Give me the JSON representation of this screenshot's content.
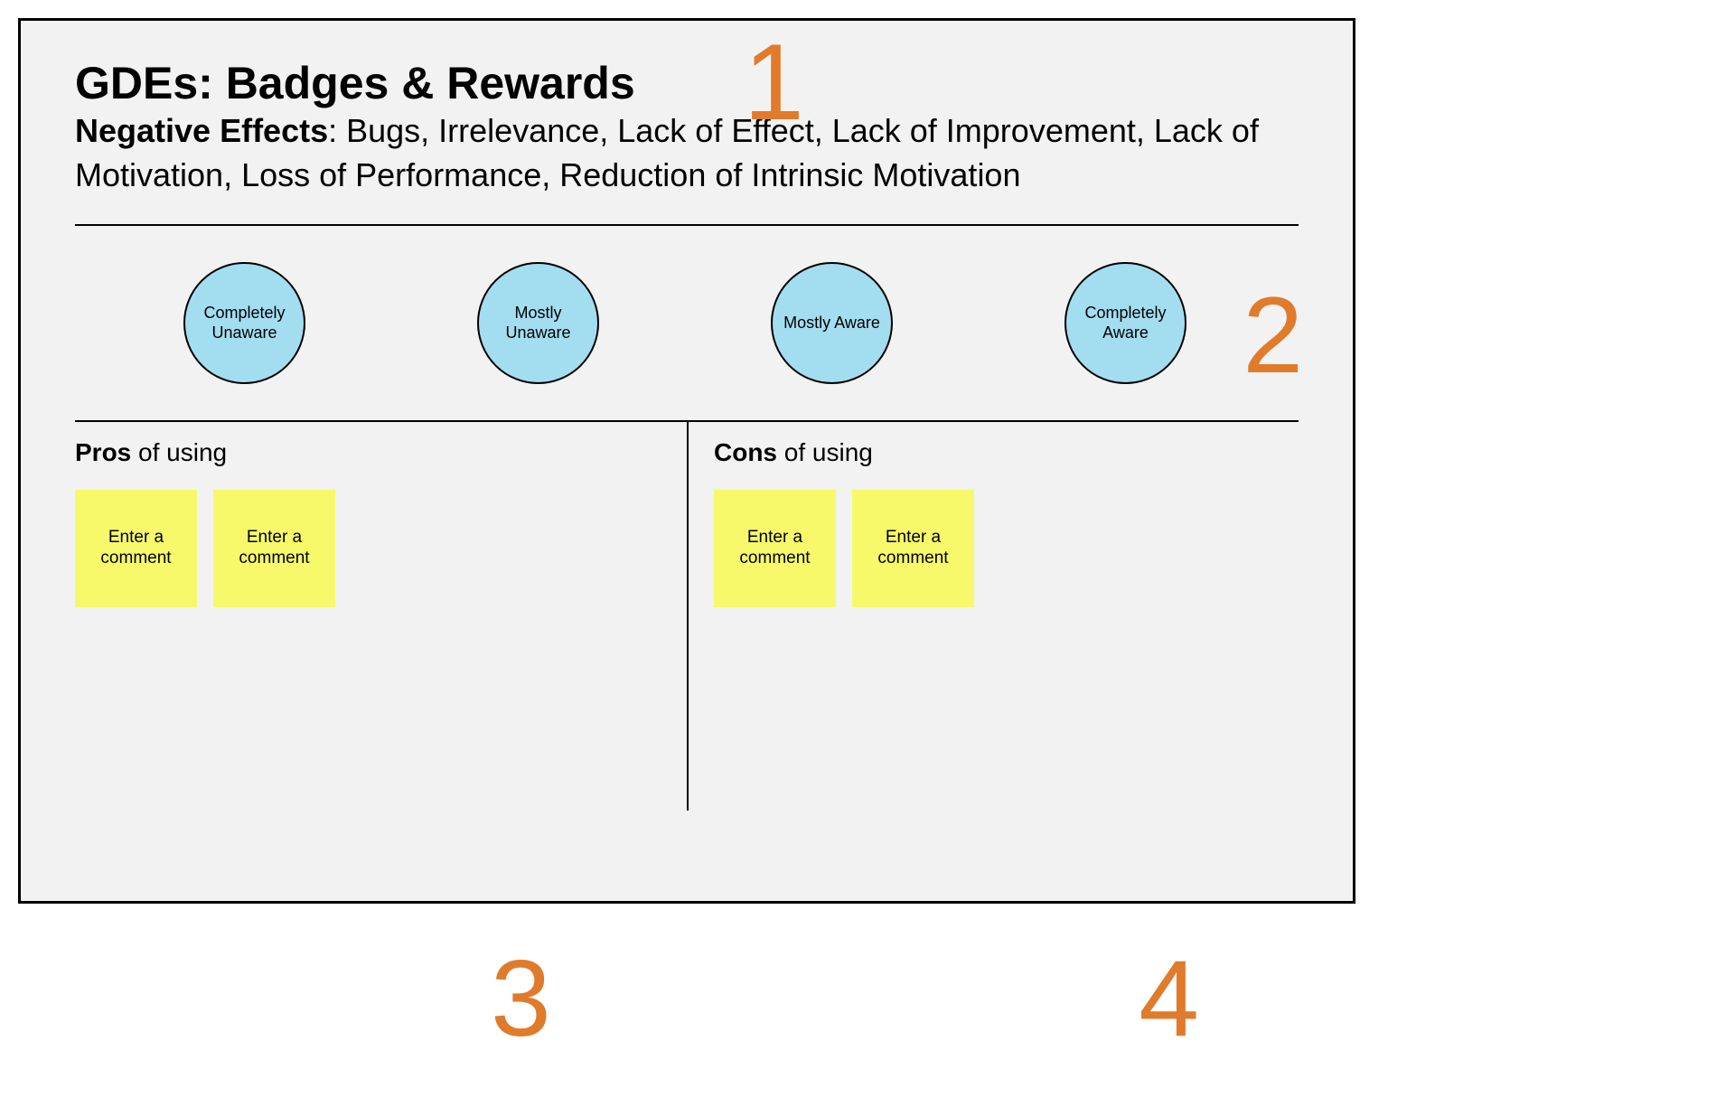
{
  "frame": {
    "background_color": "#f2f2f2",
    "border_color": "#000000",
    "border_width": 3
  },
  "title": "GDEs: Badges & Rewards",
  "title_fontsize": 50,
  "subtitle": {
    "lead": "Negative Effects",
    "rest": ": Bugs, Irrelevance, Lack of Effect, Lack of Improvement, Lack of Motivation, Loss of Performance, Reduction of Intrinsic Motivation",
    "fontsize": 36
  },
  "annotations": {
    "color": "#e07b2c",
    "fontsize": 120,
    "num1": "1",
    "num2": "2",
    "num3": "3",
    "num4": "4"
  },
  "awareness": {
    "type": "likert-circles",
    "circle_color": "#a3ddf0",
    "circle_border": "#000000",
    "circle_diameter": 135,
    "options": [
      "Completely Unaware",
      "Mostly Unaware",
      "Mostly Aware",
      "Completely Aware"
    ]
  },
  "columns": {
    "left": {
      "title_bold": "Pros",
      "title_rest": " of using",
      "sticky_placeholder": "Enter a comment"
    },
    "right": {
      "title_bold": "Cons",
      "title_rest": " of using",
      "sticky_placeholder": "Enter a comment"
    },
    "sticky": {
      "background_color": "#f7f96a",
      "width": 135,
      "height": 130,
      "fontsize": 19
    }
  },
  "rule_color": "#000000"
}
